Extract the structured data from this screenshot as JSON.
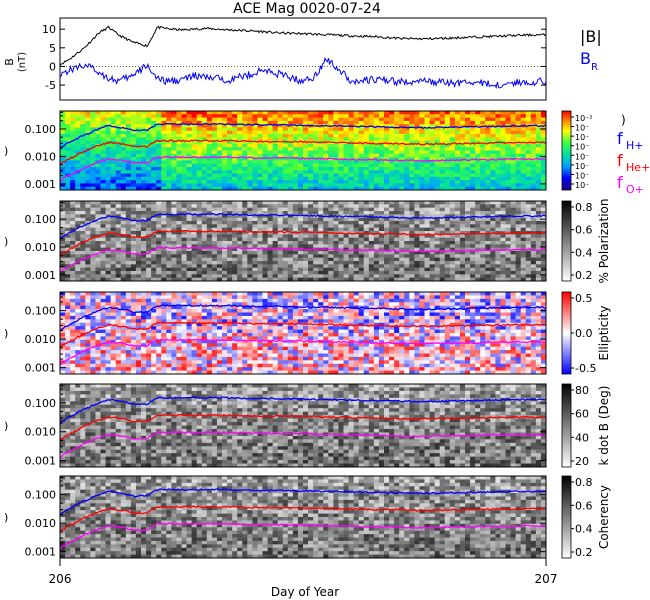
{
  "chart_data": {
    "type": "line",
    "title": "ACE Mag 0020-07-24",
    "xlabel": "Day of Year",
    "x_ticks": [
      "206",
      "207"
    ],
    "xlim": [
      206,
      207
    ],
    "colors": {
      "black": "#000000",
      "blue": "#0000ff",
      "red": "#ff0000",
      "magenta": "#ff00ff"
    },
    "top_panel": {
      "ylabel": "B (nT)",
      "ylim": [
        -9,
        13
      ],
      "y_ticks": [
        "10",
        "5",
        "0",
        "-5"
      ],
      "legend": [
        {
          "label": "|B|",
          "sub": "",
          "color": "#000000"
        },
        {
          "label": "B",
          "sub": "R",
          "color": "#0000ff"
        }
      ],
      "series": [
        {
          "name": "|B|",
          "color": "#000000",
          "x": [
            206.0,
            206.02,
            206.05,
            206.08,
            206.1,
            206.12,
            206.15,
            206.18,
            206.2,
            206.23,
            206.25,
            206.3,
            206.35,
            206.4,
            206.45,
            206.5,
            206.55,
            206.6,
            206.65,
            206.7,
            206.75,
            206.8,
            206.85,
            206.9,
            206.95,
            207.0
          ],
          "y": [
            0.5,
            2.0,
            5.0,
            9.0,
            10.5,
            8.5,
            6.5,
            5.5,
            10.5,
            10.0,
            9.8,
            10.2,
            9.8,
            9.5,
            9.0,
            8.8,
            8.5,
            8.2,
            8.0,
            7.5,
            7.4,
            7.6,
            7.9,
            8.1,
            8.4,
            8.5
          ]
        },
        {
          "name": "B",
          "color": "#0000ff",
          "x": [
            206.0,
            206.02,
            206.05,
            206.08,
            206.1,
            206.12,
            206.15,
            206.18,
            206.2,
            206.22,
            206.25,
            206.28,
            206.3,
            206.35,
            206.38,
            206.42,
            206.45,
            206.5,
            206.52,
            206.55,
            206.58,
            206.6,
            206.65,
            206.7,
            206.75,
            206.8,
            206.85,
            206.9,
            206.95,
            207.0
          ],
          "y": [
            -2.0,
            -1.0,
            0.5,
            -1.5,
            -3.0,
            -4.0,
            -2.5,
            0.5,
            -3.5,
            -4.0,
            -3.5,
            -2.5,
            -3.0,
            -3.5,
            -2.5,
            -1.0,
            -2.0,
            -4.0,
            -3.0,
            2.0,
            -1.5,
            -4.0,
            -3.5,
            -4.2,
            -4.0,
            -4.5,
            -4.2,
            -5.0,
            -4.2,
            -4.0
          ]
        }
      ]
    },
    "spectrogram_panels": [
      {
        "name": "power",
        "colorbar_ticks": [
          "10⁻²",
          "10⁻",
          "10⁻",
          "10⁻",
          "10⁻",
          "10⁻",
          "10⁻",
          "10⁻"
        ],
        "colorbar_title": ")"
      },
      {
        "name": "polarization",
        "colorbar_ticks": [
          "0.8",
          "0.6",
          "0.4",
          "0.2"
        ],
        "colorbar_title": "% Polarization"
      },
      {
        "name": "ellipticity",
        "colorbar_ticks": [
          "0.5",
          "0.0",
          "-0.5"
        ],
        "colorbar_title": "Ellipticity"
      },
      {
        "name": "k-dot-b",
        "colorbar_ticks": [
          "80",
          "60",
          "40",
          "20"
        ],
        "colorbar_title": "k dot B (Deg)"
      },
      {
        "name": "coherency",
        "colorbar_ticks": [
          "0.8",
          "0.6",
          "0.4",
          "0.2"
        ],
        "colorbar_title": "Coherency"
      }
    ],
    "spectrogram_y_ticks": [
      "0.100",
      "0.010",
      "0.001"
    ],
    "ylim_log": [
      0.0006,
      0.45
    ],
    "gyro_legend": [
      {
        "label": "f",
        "sub": "H+",
        "color": "#0000ff"
      },
      {
        "label": "f",
        "sub": "He+",
        "color": "#ff0000"
      },
      {
        "label": "f",
        "sub": "O+",
        "color": "#ff00ff"
      }
    ],
    "gyro_lines": {
      "x": [
        206.0,
        206.03,
        206.06,
        206.08,
        206.1,
        206.13,
        206.15,
        206.18,
        206.2,
        206.25,
        206.3,
        206.35,
        206.4,
        206.45,
        206.5,
        206.55,
        206.6,
        206.65,
        206.7,
        206.75,
        206.8,
        206.85,
        206.9,
        206.95,
        207.0
      ],
      "fH": [
        0.02,
        0.04,
        0.07,
        0.1,
        0.13,
        0.11,
        0.09,
        0.09,
        0.15,
        0.15,
        0.15,
        0.15,
        0.14,
        0.14,
        0.135,
        0.13,
        0.125,
        0.12,
        0.115,
        0.11,
        0.115,
        0.12,
        0.125,
        0.13,
        0.13
      ],
      "fHe": [
        0.005,
        0.01,
        0.018,
        0.025,
        0.032,
        0.028,
        0.023,
        0.023,
        0.037,
        0.037,
        0.037,
        0.037,
        0.035,
        0.035,
        0.034,
        0.033,
        0.031,
        0.03,
        0.029,
        0.028,
        0.029,
        0.03,
        0.031,
        0.032,
        0.032
      ],
      "fO": [
        0.0013,
        0.0025,
        0.0045,
        0.0063,
        0.008,
        0.007,
        0.0058,
        0.0058,
        0.0094,
        0.0094,
        0.0094,
        0.0093,
        0.0088,
        0.0088,
        0.0085,
        0.0082,
        0.0078,
        0.0075,
        0.0072,
        0.007,
        0.0072,
        0.0075,
        0.0078,
        0.008,
        0.008
      ]
    }
  }
}
